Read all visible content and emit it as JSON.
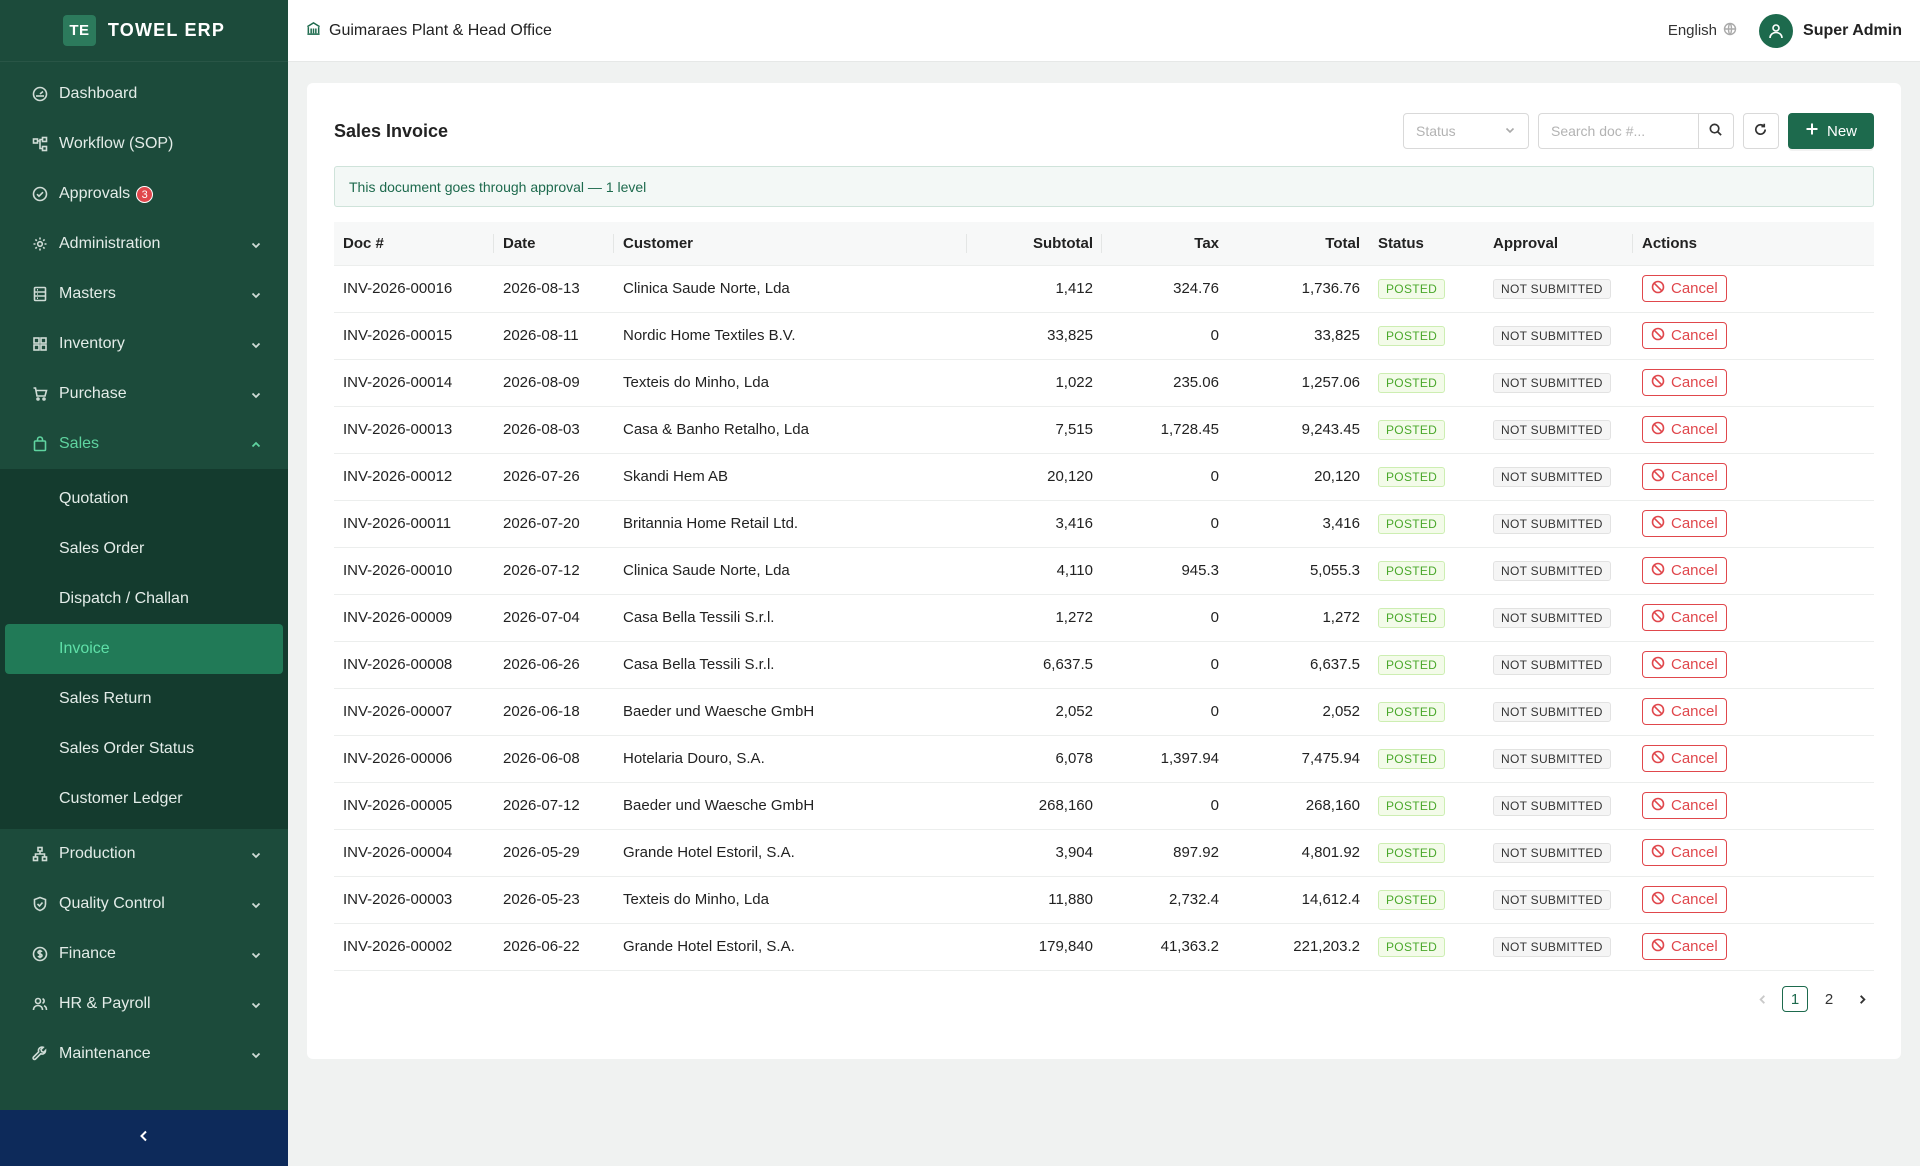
{
  "brand": {
    "logo": "TE",
    "name": "TOWEL ERP"
  },
  "sidebar": {
    "items": [
      {
        "label": "Dashboard",
        "icon": "dashboard-icon"
      },
      {
        "label": "Workflow (SOP)",
        "icon": "workflow-icon"
      },
      {
        "label": "Approvals",
        "icon": "check-circle-icon",
        "badge": "3"
      },
      {
        "label": "Administration",
        "icon": "gear-icon"
      },
      {
        "label": "Masters",
        "icon": "database-icon"
      },
      {
        "label": "Inventory",
        "icon": "grid-icon"
      },
      {
        "label": "Purchase",
        "icon": "cart-icon"
      },
      {
        "label": "Sales",
        "icon": "shopping-bag-icon"
      },
      {
        "label": "Production",
        "icon": "hierarchy-icon"
      },
      {
        "label": "Quality Control",
        "icon": "shield-check-icon"
      },
      {
        "label": "Finance",
        "icon": "dollar-circle-icon"
      },
      {
        "label": "HR & Payroll",
        "icon": "users-icon"
      },
      {
        "label": "Maintenance",
        "icon": "wrench-icon"
      }
    ],
    "sales_sub": [
      {
        "label": "Quotation"
      },
      {
        "label": "Sales Order"
      },
      {
        "label": "Dispatch / Challan"
      },
      {
        "label": "Invoice"
      },
      {
        "label": "Sales Return"
      },
      {
        "label": "Sales Order Status"
      },
      {
        "label": "Customer Ledger"
      }
    ]
  },
  "header": {
    "org": "Guimaraes Plant & Head Office",
    "language": "English",
    "user": "Super Admin"
  },
  "page": {
    "title": "Sales Invoice",
    "status_placeholder": "Status",
    "search_placeholder": "Search doc #...",
    "new_label": "New",
    "notice": "This document goes through approval — 1 level"
  },
  "table": {
    "headers": [
      "Doc #",
      "Date",
      "Customer",
      "Subtotal",
      "Tax",
      "Total",
      "Status",
      "Approval",
      "Actions"
    ],
    "cancel_label": "Cancel",
    "rows": [
      {
        "doc": "INV-2026-00016",
        "date": "2026-08-13",
        "customer": "Clinica Saude Norte, Lda",
        "subtotal": "1,412",
        "tax": "324.76",
        "total": "1,736.76",
        "status": "POSTED",
        "approval": "NOT SUBMITTED"
      },
      {
        "doc": "INV-2026-00015",
        "date": "2026-08-11",
        "customer": "Nordic Home Textiles B.V.",
        "subtotal": "33,825",
        "tax": "0",
        "total": "33,825",
        "status": "POSTED",
        "approval": "NOT SUBMITTED"
      },
      {
        "doc": "INV-2026-00014",
        "date": "2026-08-09",
        "customer": "Texteis do Minho, Lda",
        "subtotal": "1,022",
        "tax": "235.06",
        "total": "1,257.06",
        "status": "POSTED",
        "approval": "NOT SUBMITTED"
      },
      {
        "doc": "INV-2026-00013",
        "date": "2026-08-03",
        "customer": "Casa & Banho Retalho, Lda",
        "subtotal": "7,515",
        "tax": "1,728.45",
        "total": "9,243.45",
        "status": "POSTED",
        "approval": "NOT SUBMITTED"
      },
      {
        "doc": "INV-2026-00012",
        "date": "2026-07-26",
        "customer": "Skandi Hem AB",
        "subtotal": "20,120",
        "tax": "0",
        "total": "20,120",
        "status": "POSTED",
        "approval": "NOT SUBMITTED"
      },
      {
        "doc": "INV-2026-00011",
        "date": "2026-07-20",
        "customer": "Britannia Home Retail Ltd.",
        "subtotal": "3,416",
        "tax": "0",
        "total": "3,416",
        "status": "POSTED",
        "approval": "NOT SUBMITTED"
      },
      {
        "doc": "INV-2026-00010",
        "date": "2026-07-12",
        "customer": "Clinica Saude Norte, Lda",
        "subtotal": "4,110",
        "tax": "945.3",
        "total": "5,055.3",
        "status": "POSTED",
        "approval": "NOT SUBMITTED"
      },
      {
        "doc": "INV-2026-00009",
        "date": "2026-07-04",
        "customer": "Casa Bella Tessili S.r.l.",
        "subtotal": "1,272",
        "tax": "0",
        "total": "1,272",
        "status": "POSTED",
        "approval": "NOT SUBMITTED"
      },
      {
        "doc": "INV-2026-00008",
        "date": "2026-06-26",
        "customer": "Casa Bella Tessili S.r.l.",
        "subtotal": "6,637.5",
        "tax": "0",
        "total": "6,637.5",
        "status": "POSTED",
        "approval": "NOT SUBMITTED"
      },
      {
        "doc": "INV-2026-00007",
        "date": "2026-06-18",
        "customer": "Baeder und Waesche GmbH",
        "subtotal": "2,052",
        "tax": "0",
        "total": "2,052",
        "status": "POSTED",
        "approval": "NOT SUBMITTED"
      },
      {
        "doc": "INV-2026-00006",
        "date": "2026-06-08",
        "customer": "Hotelaria Douro, S.A.",
        "subtotal": "6,078",
        "tax": "1,397.94",
        "total": "7,475.94",
        "status": "POSTED",
        "approval": "NOT SUBMITTED"
      },
      {
        "doc": "INV-2026-00005",
        "date": "2026-07-12",
        "customer": "Baeder und Waesche GmbH",
        "subtotal": "268,160",
        "tax": "0",
        "total": "268,160",
        "status": "POSTED",
        "approval": "NOT SUBMITTED"
      },
      {
        "doc": "INV-2026-00004",
        "date": "2026-05-29",
        "customer": "Grande Hotel Estoril, S.A.",
        "subtotal": "3,904",
        "tax": "897.92",
        "total": "4,801.92",
        "status": "POSTED",
        "approval": "NOT SUBMITTED"
      },
      {
        "doc": "INV-2026-00003",
        "date": "2026-05-23",
        "customer": "Texteis do Minho, Lda",
        "subtotal": "11,880",
        "tax": "2,732.4",
        "total": "14,612.4",
        "status": "POSTED",
        "approval": "NOT SUBMITTED"
      },
      {
        "doc": "INV-2026-00002",
        "date": "2026-06-22",
        "customer": "Grande Hotel Estoril, S.A.",
        "subtotal": "179,840",
        "tax": "41,363.2",
        "total": "221,203.2",
        "status": "POSTED",
        "approval": "NOT SUBMITTED"
      }
    ]
  },
  "pagination": {
    "pages": [
      "1",
      "2"
    ],
    "current": "1"
  },
  "colors": {
    "brand": "#1d6a4d",
    "sidebar": "#1c4b3b",
    "accent": "#5fd4a0",
    "danger": "#e0474c"
  }
}
